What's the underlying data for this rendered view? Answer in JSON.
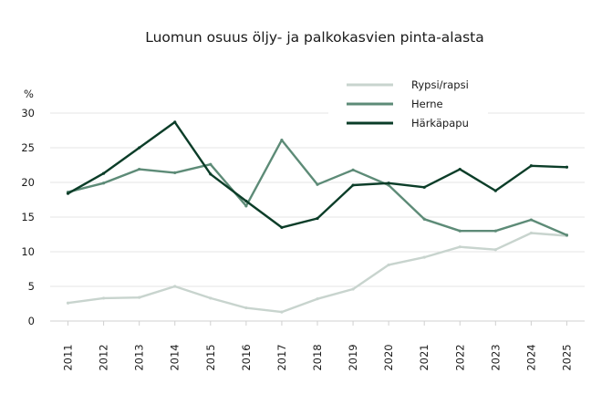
{
  "chart_data": {
    "type": "line",
    "title": "Luomun osuus öljy- ja palkokasvien pinta-alasta",
    "unit_label": "%",
    "xlabel": "",
    "ylabel": "",
    "ylim": [
      0,
      30
    ],
    "yticks": [
      0,
      5,
      10,
      15,
      20,
      25,
      30
    ],
    "grid": true,
    "legend_position": "top-right",
    "x": [
      "2011",
      "2012",
      "2013",
      "2014",
      "2015",
      "2016",
      "2017",
      "2018",
      "2019",
      "2020",
      "2021",
      "2022",
      "2023",
      "2024",
      "2025"
    ],
    "series": [
      {
        "name": "Rypsi/rapsi",
        "color": "#c8d4ce",
        "values": [
          2.6,
          3.3,
          3.4,
          5.0,
          3.3,
          1.9,
          1.3,
          3.2,
          4.6,
          8.1,
          9.2,
          10.7,
          10.3,
          12.7,
          12.3
        ]
      },
      {
        "name": "Herne",
        "color": "#5d8b77",
        "values": [
          18.6,
          19.9,
          21.9,
          21.4,
          22.6,
          16.6,
          26.1,
          19.7,
          21.8,
          19.6,
          14.7,
          13.0,
          13.0,
          14.6,
          12.4
        ]
      },
      {
        "name": "Härkäpapu",
        "color": "#0b3d28",
        "values": [
          18.4,
          21.3,
          25.0,
          28.7,
          21.2,
          17.3,
          13.5,
          14.8,
          19.6,
          19.9,
          19.3,
          21.9,
          18.8,
          22.4,
          22.2
        ]
      }
    ]
  }
}
